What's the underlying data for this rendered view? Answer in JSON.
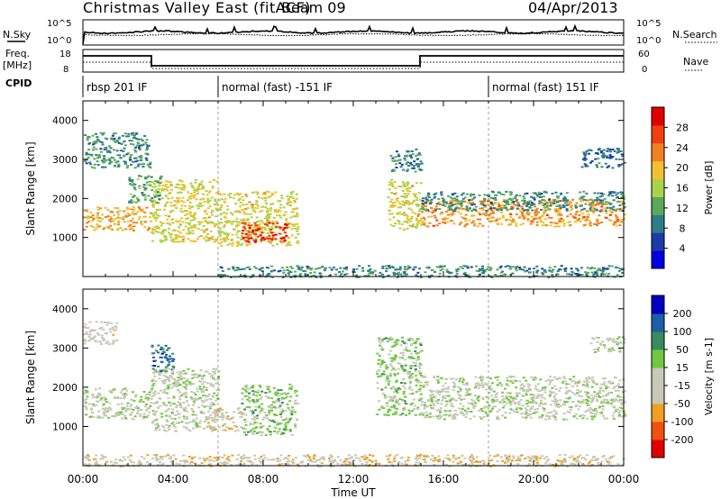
{
  "header": {
    "title": "Christmas Valley East (fitACF)",
    "beam": "Beam 09",
    "date": "04/Apr/2013"
  },
  "summary_panels": {
    "nsky_label": "N.Sky",
    "nsearch_label": "N.Search",
    "noise_ticks": [
      "10^5",
      "10^0"
    ],
    "freq_label_1": "Freq.",
    "freq_label_2": "[MHz]",
    "freq_ticks": [
      "18",
      "8"
    ],
    "nave_label": "Nave",
    "nave_ticks": [
      "60",
      "0"
    ],
    "cpid_label": "CPID",
    "cpid_segments": [
      {
        "label": "rbsp 201 IF",
        "start_hour": 0
      },
      {
        "label": "normal (fast) -151 IF",
        "start_hour": 6
      },
      {
        "label": "normal (fast) 151 IF",
        "start_hour": 18
      }
    ]
  },
  "colors": {
    "power": [
      "#0000e0",
      "#1c3aa8",
      "#2f7d86",
      "#5aa95a",
      "#a8d44a",
      "#f0c030",
      "#f08020",
      "#f04010",
      "#e00000"
    ],
    "velocity": [
      "#e00000",
      "#f05010",
      "#f0a020",
      "#c8c8b8",
      "#c8c8b8",
      "#70c840",
      "#3a8a60",
      "#1a5fa8",
      "#0000c0"
    ]
  },
  "chart_data": [
    {
      "type": "heatmap",
      "title": "Power",
      "xlabel": "",
      "ylabel": "Slant Range [km]",
      "xlim": [
        0,
        24
      ],
      "ylim": [
        0,
        4500
      ],
      "yticks": [
        1000,
        2000,
        3000,
        4000
      ],
      "colorbar": {
        "label": "Power [dB]",
        "ticks": [
          4,
          8,
          12,
          16,
          20,
          24,
          28
        ],
        "range": [
          0,
          32
        ]
      },
      "bands": [
        {
          "x": [
            0.0,
            3.0
          ],
          "y": [
            1200,
            1800
          ],
          "value": 20
        },
        {
          "x": [
            0.0,
            3.0
          ],
          "y": [
            2800,
            3700
          ],
          "value": 10
        },
        {
          "x": [
            3.0,
            6.0
          ],
          "y": [
            900,
            2500
          ],
          "value": 18
        },
        {
          "x": [
            2.0,
            3.5
          ],
          "y": [
            1900,
            2600
          ],
          "value": 12
        },
        {
          "x": [
            6.0,
            9.5
          ],
          "y": [
            800,
            2200
          ],
          "value": 18
        },
        {
          "x": [
            7.0,
            9.0
          ],
          "y": [
            900,
            1400
          ],
          "value": 28
        },
        {
          "x": [
            13.5,
            15.0
          ],
          "y": [
            1200,
            2500
          ],
          "value": 18
        },
        {
          "x": [
            13.5,
            15.0
          ],
          "y": [
            2700,
            3300
          ],
          "value": 10
        },
        {
          "x": [
            15.0,
            24.0
          ],
          "y": [
            1300,
            2000
          ],
          "value": 22
        },
        {
          "x": [
            15.0,
            24.0
          ],
          "y": [
            1700,
            2200
          ],
          "value": 10
        },
        {
          "x": [
            22.0,
            24.0
          ],
          "y": [
            2800,
            3300
          ],
          "value": 8
        },
        {
          "x": [
            6.0,
            24.0
          ],
          "y": [
            0,
            300
          ],
          "value": 10
        }
      ]
    },
    {
      "type": "heatmap",
      "title": "Velocity",
      "xlabel": "Time UT",
      "ylabel": "Slant Range [km]",
      "xlim": [
        0,
        24
      ],
      "ylim": [
        0,
        4500
      ],
      "xticks": [
        "00:00",
        "04:00",
        "08:00",
        "12:00",
        "16:00",
        "20:00",
        "00:00"
      ],
      "yticks": [
        1000,
        2000,
        3000,
        4000
      ],
      "colorbar": {
        "label": "Velocity [m s-1]",
        "ticks": [
          200,
          100,
          50,
          15,
          -15,
          -50,
          -100,
          -200
        ],
        "range": [
          -250,
          250
        ]
      },
      "bands": [
        {
          "x": [
            0.0,
            3.0
          ],
          "y": [
            1200,
            2000
          ],
          "value": 0
        },
        {
          "x": [
            0.0,
            1.5
          ],
          "y": [
            3100,
            3700
          ],
          "value": -30
        },
        {
          "x": [
            3.0,
            4.0
          ],
          "y": [
            2400,
            3100
          ],
          "value": 150
        },
        {
          "x": [
            3.0,
            6.0
          ],
          "y": [
            900,
            2500
          ],
          "value": 0
        },
        {
          "x": [
            5.5,
            7.0
          ],
          "y": [
            900,
            1500
          ],
          "value": -60
        },
        {
          "x": [
            7.0,
            9.5
          ],
          "y": [
            800,
            2100
          ],
          "value": 40
        },
        {
          "x": [
            13.0,
            15.0
          ],
          "y": [
            1300,
            3300
          ],
          "value": 40
        },
        {
          "x": [
            15.0,
            24.0
          ],
          "y": [
            1200,
            2300
          ],
          "value": 0
        },
        {
          "x": [
            22.5,
            24.0
          ],
          "y": [
            2900,
            3300
          ],
          "value": 0
        },
        {
          "x": [
            0.0,
            24.0
          ],
          "y": [
            0,
            300
          ],
          "value": -60
        }
      ]
    }
  ]
}
